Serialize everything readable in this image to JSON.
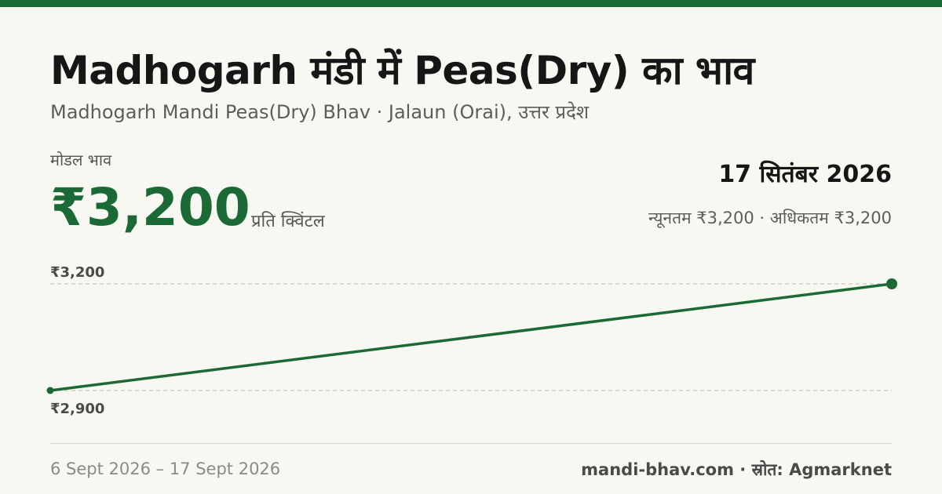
{
  "header": {
    "title": "Madhogarh मंडी में Peas(Dry) का भाव",
    "subtitle": "Madhogarh Mandi Peas(Dry) Bhav · Jalaun (Orai), उत्तर प्रदेश"
  },
  "price": {
    "label": "मोडल भाव",
    "value": "₹3,200",
    "unit": "प्रति क्विंटल"
  },
  "date_block": {
    "date": "17 सितंबर 2026",
    "range": "न्यूनतम ₹3,200 · अधिकतम ₹3,200"
  },
  "chart_data": {
    "type": "line",
    "x": [
      "6 Sept 2026",
      "17 Sept 2026"
    ],
    "series": [
      {
        "values": [
          2900,
          3200
        ]
      }
    ],
    "ylim": [
      2900,
      3200
    ],
    "y_tick_labels": [
      "₹3,200",
      "₹2,900"
    ],
    "grid": true,
    "color": "#1b6a35"
  },
  "footer": {
    "period": "6 Sept 2026 – 17 Sept 2026",
    "source": "mandi-bhav.com · स्रोत: Agmarknet"
  },
  "colors": {
    "accent": "#1b6a35",
    "background": "#f8f8f3"
  }
}
